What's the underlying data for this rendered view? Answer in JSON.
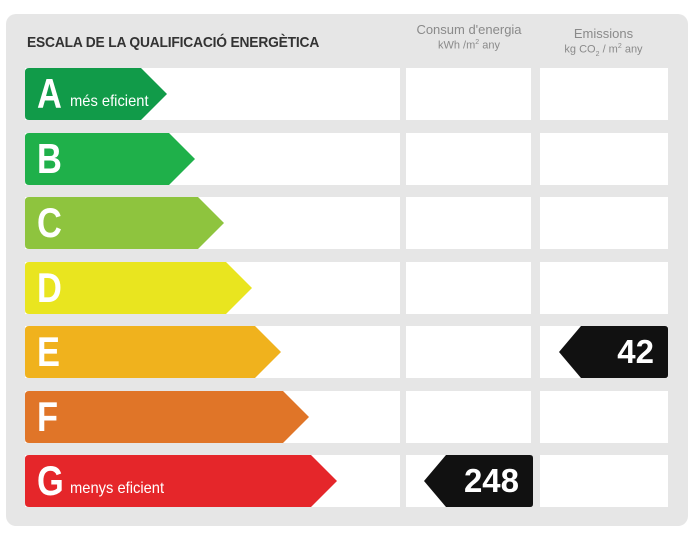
{
  "header": {
    "title": "ESCALA DE LA QUALIFICACIÓ ENERGÈTICA",
    "consum": {
      "line1": "Consum d'energia",
      "unit_pre": "kWh /m",
      "unit_sup": "2",
      "unit_post": " any"
    },
    "emissions": {
      "line1": "Emissions",
      "unit_pre": "kg CO",
      "unit_sub": "2",
      "unit_mid": " / m",
      "unit_sup": "2",
      "unit_post": " any"
    }
  },
  "ratings": [
    {
      "letter": "A",
      "sub": "més eficient",
      "color": "#119b49"
    },
    {
      "letter": "B",
      "sub": "",
      "color": "#1fb04a"
    },
    {
      "letter": "C",
      "sub": "",
      "color": "#8ec43e"
    },
    {
      "letter": "D",
      "sub": "",
      "color": "#e9e51f"
    },
    {
      "letter": "E",
      "sub": "",
      "color": "#f0b21d"
    },
    {
      "letter": "F",
      "sub": "",
      "color": "#e07528"
    },
    {
      "letter": "G",
      "sub": "menys eficient",
      "color": "#e5262a"
    }
  ],
  "values": {
    "consum": {
      "rating_index": 6,
      "value": "248"
    },
    "emissions": {
      "rating_index": 4,
      "value": "42"
    }
  },
  "colors": {
    "marker": "#111111",
    "panel": "#e6e6e6"
  }
}
